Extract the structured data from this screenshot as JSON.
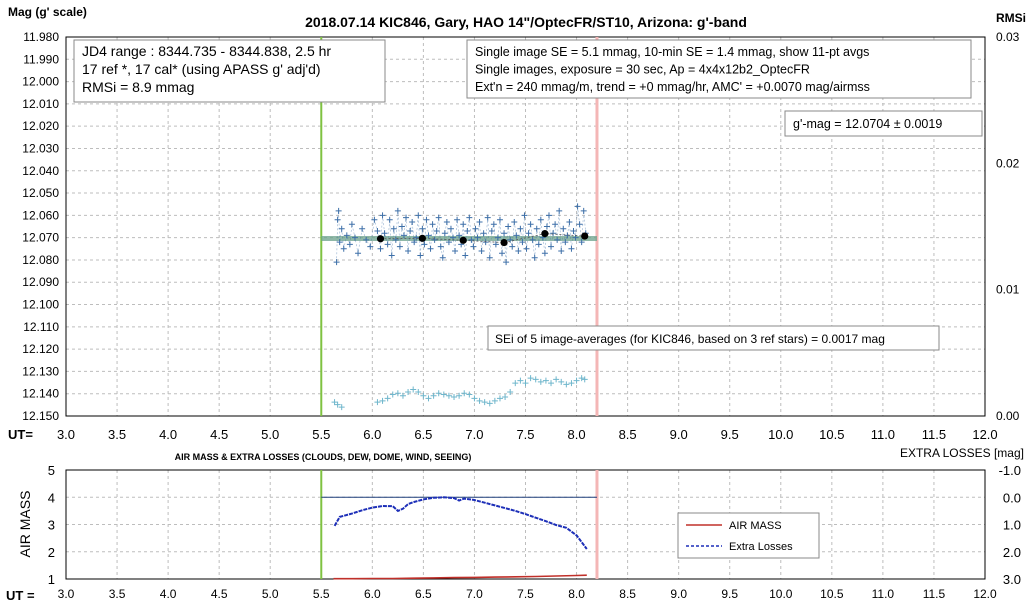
{
  "chart_data": [
    {
      "type": "scatter",
      "title": "2018.07.14  KIC846,  Gary,  HAO  14\"/OptecFR/ST10,  Arizona:  g'-band",
      "ylabel": "Mag (g' scale)",
      "y2label": "RMSi",
      "xlabel": "UT=",
      "xlim": [
        3.0,
        12.0
      ],
      "x_ticks": [
        "3.0",
        "3.5",
        "4.0",
        "4.5",
        "5.0",
        "5.5",
        "6.0",
        "6.5",
        "7.0",
        "7.5",
        "8.0",
        "8.5",
        "9.0",
        "9.5",
        "10.0",
        "10.5",
        "11.0",
        "11.5",
        "12.0"
      ],
      "ylim": [
        11.98,
        12.15
      ],
      "y_inverted": true,
      "y_ticks": [
        "11.980",
        "11.990",
        "12.000",
        "12.010",
        "12.020",
        "12.030",
        "12.040",
        "12.050",
        "12.060",
        "12.070",
        "12.080",
        "12.090",
        "12.100",
        "12.110",
        "12.120",
        "12.130",
        "12.140",
        "12.150"
      ],
      "y2lim": [
        0.0,
        0.03
      ],
      "y2_ticks": [
        "0.03",
        "0.02",
        "0.01",
        "0.00"
      ],
      "grid": true,
      "vertical_markers": [
        {
          "x": 5.5,
          "color": "#7fc241"
        },
        {
          "x": 8.2,
          "color": "#f4b6b6"
        }
      ],
      "avg_line": {
        "x": [
          5.5,
          8.2
        ],
        "y": 12.0704,
        "color": "#6aa08a"
      },
      "info_box_left": [
        "JD4 range : 8344.735 - 8344.838,  2.5  hr",
        "17 ref *,  17 cal* (using APASS g' adj'd)",
        "RMSi = 8.9 mmag"
      ],
      "info_box_right": [
        "Single image SE = 5.1 mmag, 10-min SE = 1.4 mmag, show  11-pt avgs",
        "Single images, exposure = 30 sec, Ap = 4x4x12b2_OptecFR",
        "Ext'n = 240 mmag/m, trend =  +0 mmag/hr, AMC' = +0.0070 mag/airmss"
      ],
      "mag_box": "g'-mag = 12.0704 ± 0.0019",
      "sei_box": "SEi of 5 image-averages (for KIC846, based on 3 ref stars) = 0.0017  mag",
      "series": [
        {
          "marker": "plus",
          "color": "#3d6fa8",
          "x": [
            5.65,
            5.66,
            5.67,
            5.68,
            5.7,
            5.72,
            5.75,
            5.78,
            5.8,
            5.83,
            5.86,
            5.9,
            5.94,
            5.98,
            6.02,
            6.05,
            6.08,
            6.1,
            6.12,
            6.15,
            6.17,
            6.19,
            6.21,
            6.23,
            6.25,
            6.27,
            6.29,
            6.31,
            6.33,
            6.35,
            6.37,
            6.39,
            6.41,
            6.43,
            6.45,
            6.47,
            6.49,
            6.51,
            6.53,
            6.55,
            6.57,
            6.59,
            6.61,
            6.63,
            6.65,
            6.67,
            6.69,
            6.71,
            6.73,
            6.75,
            6.77,
            6.79,
            6.81,
            6.83,
            6.85,
            6.87,
            6.89,
            6.91,
            6.93,
            6.95,
            6.97,
            6.99,
            7.01,
            7.03,
            7.05,
            7.07,
            7.09,
            7.11,
            7.13,
            7.15,
            7.17,
            7.19,
            7.21,
            7.23,
            7.25,
            7.27,
            7.29,
            7.31,
            7.33,
            7.35,
            7.37,
            7.39,
            7.41,
            7.43,
            7.45,
            7.47,
            7.49,
            7.51,
            7.53,
            7.55,
            7.57,
            7.59,
            7.61,
            7.63,
            7.65,
            7.67,
            7.69,
            7.71,
            7.73,
            7.75,
            7.77,
            7.79,
            7.81,
            7.83,
            7.85,
            7.87,
            7.89,
            7.91,
            7.93,
            7.95,
            7.97,
            7.99,
            8.01,
            8.03,
            8.05,
            8.07,
            8.09
          ],
          "y": [
            12.081,
            12.062,
            12.058,
            12.072,
            12.066,
            12.075,
            12.069,
            12.073,
            12.064,
            12.07,
            12.077,
            12.066,
            12.071,
            12.074,
            12.062,
            12.067,
            12.075,
            12.06,
            12.068,
            12.073,
            12.062,
            12.078,
            12.066,
            12.071,
            12.058,
            12.074,
            12.065,
            12.069,
            12.061,
            12.076,
            12.067,
            12.063,
            12.072,
            12.07,
            12.06,
            12.078,
            12.066,
            12.073,
            12.062,
            12.069,
            12.075,
            12.064,
            12.071,
            12.067,
            12.061,
            12.074,
            12.079,
            12.068,
            12.063,
            12.072,
            12.066,
            12.07,
            12.076,
            12.062,
            12.069,
            12.073,
            12.064,
            12.078,
            12.067,
            12.061,
            12.071,
            12.074,
            12.066,
            12.07,
            12.063,
            12.076,
            12.068,
            12.072,
            12.061,
            12.079,
            12.067,
            12.064,
            12.073,
            12.07,
            12.062,
            12.077,
            12.068,
            12.081,
            12.065,
            12.071,
            12.074,
            12.063,
            12.069,
            12.076,
            12.066,
            12.072,
            12.06,
            12.075,
            12.068,
            12.064,
            12.071,
            12.079,
            12.066,
            12.073,
            12.062,
            12.07,
            12.077,
            12.065,
            12.06,
            12.074,
            12.068,
            12.064,
            12.071,
            12.058,
            12.076,
            12.066,
            12.072,
            12.069,
            12.063,
            12.075,
            12.067,
            12.07,
            12.056,
            12.064,
            12.072,
            12.058,
            12.068
          ]
        },
        {
          "name": "11-pt avgs",
          "marker": "circle",
          "color": "#000000",
          "x": [
            6.08,
            6.49,
            6.89,
            7.29,
            7.69,
            8.08
          ],
          "y": [
            12.0705,
            12.0703,
            12.0712,
            12.0722,
            12.0682,
            12.0693
          ]
        },
        {
          "name": "RMSi",
          "axis": "y2",
          "marker": "plus",
          "color": "#6fb6cc",
          "x": [
            5.63,
            5.66,
            5.7,
            6.05,
            6.1,
            6.15,
            6.2,
            6.25,
            6.3,
            6.35,
            6.4,
            6.45,
            6.5,
            6.55,
            6.6,
            6.65,
            6.7,
            6.75,
            6.8,
            6.85,
            6.9,
            6.95,
            7.0,
            7.05,
            7.1,
            7.15,
            7.2,
            7.25,
            7.3,
            7.35,
            7.4,
            7.45,
            7.5,
            7.55,
            7.6,
            7.65,
            7.7,
            7.75,
            7.8,
            7.85,
            7.9,
            7.95,
            8.0,
            8.05,
            8.08
          ],
          "y": [
            0.0011,
            0.0009,
            0.0007,
            0.0011,
            0.0012,
            0.0014,
            0.0017,
            0.0018,
            0.0016,
            0.0019,
            0.0021,
            0.0019,
            0.0016,
            0.0014,
            0.0016,
            0.0018,
            0.0017,
            0.0016,
            0.0015,
            0.0016,
            0.0018,
            0.0017,
            0.0014,
            0.0012,
            0.0011,
            0.001,
            0.0012,
            0.0014,
            0.0015,
            0.0019,
            0.0026,
            0.0028,
            0.0026,
            0.003,
            0.0029,
            0.0027,
            0.0028,
            0.0026,
            0.0029,
            0.0027,
            0.0025,
            0.0026,
            0.0028,
            0.003,
            0.0029
          ]
        }
      ]
    },
    {
      "type": "line",
      "title": "AIR MASS & EXTRA LOSSES (CLOUDS, DEW, DOME, WIND, SEEING)",
      "ylabel": "AIR MASS",
      "y2label": "EXTRA LOSSES [mag]",
      "xlabel": "UT =",
      "xlim": [
        3.0,
        12.0
      ],
      "x_ticks": [
        "3.0",
        "3.5",
        "4.0",
        "4.5",
        "5.0",
        "5.5",
        "6.0",
        "6.5",
        "7.0",
        "7.5",
        "8.0",
        "8.5",
        "9.0",
        "9.5",
        "10.0",
        "10.5",
        "11.0",
        "11.5",
        "12.0"
      ],
      "ylim": [
        1,
        5
      ],
      "y_ticks": [
        "5",
        "4",
        "3",
        "2",
        "1"
      ],
      "y2lim": [
        -1.0,
        3.0
      ],
      "y2_ticks": [
        "-1.0",
        "0.0",
        "1.0",
        "2.0",
        "3.0"
      ],
      "grid": true,
      "vertical_markers": [
        {
          "x": 5.5,
          "color": "#7fc241"
        },
        {
          "x": 8.2,
          "color": "#f4b6b6"
        }
      ],
      "zero_line": {
        "x": [
          5.5,
          8.2
        ],
        "y2": 0.0,
        "color": "#1f3f7a"
      },
      "legend_position": "right",
      "legend": [
        "AIR MASS",
        "Extra Losses"
      ],
      "series": [
        {
          "name": "AIR MASS",
          "color": "#c0302a",
          "style": "solid",
          "x": [
            5.62,
            5.8,
            6.0,
            6.2,
            6.4,
            6.6,
            6.8,
            7.0,
            7.2,
            7.4,
            7.6,
            7.8,
            8.0,
            8.1
          ],
          "y": [
            1.01,
            1.01,
            1.02,
            1.02,
            1.03,
            1.04,
            1.05,
            1.06,
            1.07,
            1.08,
            1.09,
            1.11,
            1.13,
            1.14
          ]
        },
        {
          "name": "Extra Losses",
          "axis": "y2",
          "color": "#1d2fb8",
          "style": "dashed",
          "x": [
            5.63,
            5.68,
            5.72,
            5.8,
            5.9,
            6.0,
            6.1,
            6.2,
            6.25,
            6.3,
            6.35,
            6.4,
            6.5,
            6.6,
            6.7,
            6.8,
            6.85,
            6.9,
            7.0,
            7.1,
            7.2,
            7.3,
            7.4,
            7.5,
            7.6,
            7.7,
            7.8,
            7.9,
            8.0,
            8.05,
            8.1
          ],
          "y": [
            1.05,
            0.72,
            0.68,
            0.6,
            0.48,
            0.38,
            0.32,
            0.33,
            0.5,
            0.42,
            0.25,
            0.18,
            0.08,
            0.02,
            0.0,
            0.03,
            0.12,
            0.05,
            0.1,
            0.2,
            0.3,
            0.4,
            0.5,
            0.62,
            0.75,
            0.88,
            1.02,
            1.12,
            1.4,
            1.65,
            1.9
          ]
        }
      ]
    }
  ]
}
